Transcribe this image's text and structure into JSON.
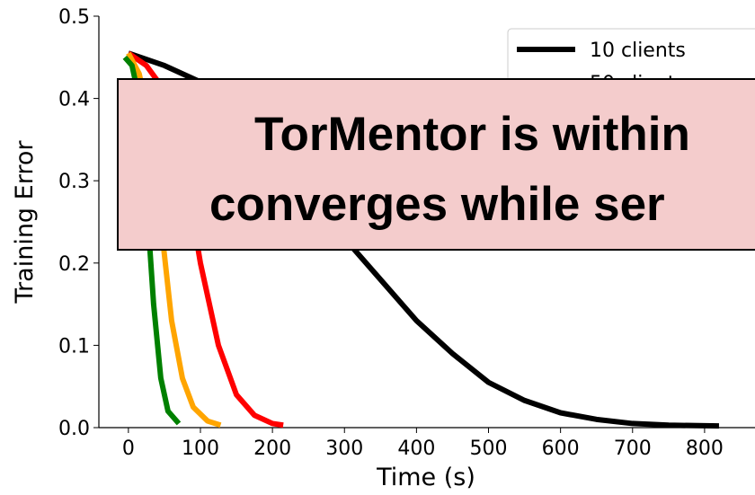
{
  "chart_data": {
    "type": "line",
    "xlabel": "Time (s)",
    "ylabel": "Training Error",
    "xlim": [
      -41,
      870
    ],
    "ylim": [
      0,
      0.5
    ],
    "xticks": [
      0,
      100,
      200,
      300,
      400,
      500,
      600,
      700,
      800
    ],
    "yticks": [
      {
        "value": 0,
        "label": "0.0"
      },
      0.1,
      0.2,
      0.3,
      0.4,
      0.5
    ],
    "series": [
      {
        "name": "10 clients",
        "color": "#000000",
        "x": [
          0,
          50,
          100,
          150,
          200,
          250,
          300,
          350,
          400,
          450,
          500,
          550,
          600,
          650,
          700,
          750,
          820
        ],
        "values": [
          0.455,
          0.44,
          0.42,
          0.39,
          0.35,
          0.29,
          0.23,
          0.18,
          0.13,
          0.09,
          0.055,
          0.033,
          0.018,
          0.01,
          0.005,
          0.003,
          0.002
        ]
      },
      {
        "name": "50 clients",
        "color": "#ff0000",
        "x": [
          0,
          25,
          50,
          75,
          100,
          125,
          150,
          175,
          200,
          215
        ],
        "values": [
          0.455,
          0.44,
          0.41,
          0.33,
          0.2,
          0.1,
          0.04,
          0.015,
          0.005,
          0.003
        ]
      },
      {
        "color": "#ffa500",
        "x": [
          0,
          15,
          30,
          45,
          60,
          75,
          90,
          110,
          128
        ],
        "values": [
          0.455,
          0.43,
          0.37,
          0.25,
          0.13,
          0.06,
          0.025,
          0.008,
          0.003
        ]
      },
      {
        "color": "#008000",
        "x": [
          -5,
          5,
          15,
          25,
          35,
          45,
          55,
          70
        ],
        "values": [
          0.45,
          0.44,
          0.4,
          0.28,
          0.15,
          0.06,
          0.02,
          0.005
        ]
      }
    ]
  },
  "overlay": {
    "lines": [
      "TorMentor is within",
      "converges while ser"
    ]
  }
}
